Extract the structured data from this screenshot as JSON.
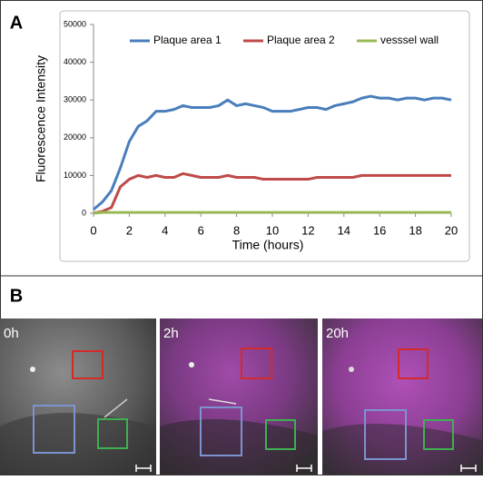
{
  "panel_a_label": "A",
  "chart_data": {
    "type": "line",
    "ylabel": "Fluorescence Intensity",
    "xlabel": "Time (hours)",
    "x": [
      0,
      0.5,
      1,
      1.5,
      2,
      2.5,
      3,
      3.5,
      4,
      4.5,
      5,
      5.5,
      6,
      6.5,
      7,
      7.5,
      8,
      8.5,
      9,
      9.5,
      10,
      10.5,
      11,
      11.5,
      12,
      12.5,
      13,
      13.5,
      14,
      14.5,
      15,
      15.5,
      16,
      16.5,
      17,
      17.5,
      18,
      18.5,
      19,
      19.5,
      20
    ],
    "series": [
      {
        "name": "Plaque area 1",
        "color": "#4a7ebb",
        "values": [
          1000,
          3000,
          6000,
          12000,
          19000,
          23000,
          24500,
          27000,
          27000,
          27500,
          28500,
          28000,
          28000,
          28000,
          28500,
          30000,
          28500,
          29000,
          28500,
          28000,
          27000,
          27000,
          27000,
          27500,
          28000,
          28000,
          27500,
          28500,
          29000,
          29500,
          30500,
          31000,
          30500,
          30500,
          30000,
          30500,
          30500,
          30000,
          30500,
          30500,
          30000
        ]
      },
      {
        "name": "Plaque area 2",
        "color": "#be4b48",
        "values": [
          0,
          500,
          1500,
          7000,
          9000,
          10000,
          9500,
          10000,
          9500,
          9500,
          10500,
          10000,
          9500,
          9500,
          9500,
          10000,
          9500,
          9500,
          9500,
          9000,
          9000,
          9000,
          9000,
          9000,
          9000,
          9500,
          9500,
          9500,
          9500,
          9500,
          10000,
          10000,
          10000,
          10000,
          10000,
          10000,
          10000,
          10000,
          10000,
          10000,
          10000
        ]
      },
      {
        "name": "vesssel wall",
        "color": "#98b954",
        "values": [
          0,
          200,
          200,
          200,
          200,
          200,
          200,
          200,
          200,
          200,
          200,
          200,
          200,
          200,
          200,
          200,
          200,
          200,
          200,
          200,
          200,
          200,
          200,
          200,
          200,
          200,
          200,
          200,
          200,
          200,
          200,
          200,
          200,
          200,
          200,
          200,
          200,
          200,
          200,
          200,
          200
        ]
      }
    ],
    "xlim": [
      0,
      20
    ],
    "xticks": [
      0,
      2,
      4,
      6,
      8,
      10,
      12,
      14,
      16,
      18,
      20
    ],
    "ylim": [
      0,
      50000
    ],
    "yticks": [
      0,
      10000,
      20000,
      30000,
      40000,
      50000
    ],
    "grid": false,
    "legend": "top"
  },
  "panel_b": {
    "label": "B",
    "frames": [
      {
        "label": "0h"
      },
      {
        "label": "2h"
      },
      {
        "label": "20h"
      }
    ]
  }
}
